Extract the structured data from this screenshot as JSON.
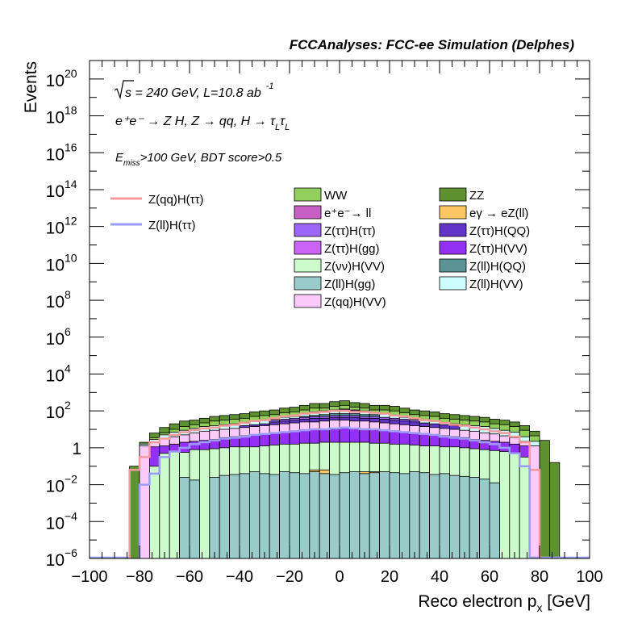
{
  "colors": {
    "ZZ": "#5e9130",
    "WW": "#93cf5c",
    "ee_ll": "#c85fc7",
    "egamma": "#fcc662",
    "tautau_tautau": "#9d66f9",
    "tautau_QQ": "#6234c8",
    "tautau_gg": "#cb63f6",
    "tautau_VV": "#9430f4",
    "nunu_VV": "#ccfccc",
    "ll_QQ": "#5c9496",
    "ll_gg": "#99cbcb",
    "ll_VV": "#cefdfd",
    "qq_VV": "#fdcbfb",
    "sig_qq": "#f7999b",
    "sig_ll": "#9b9cfa"
  },
  "chart_data": {
    "type": "histogram-stack",
    "title": "FCCAnalyses: FCC-ee Simulation (Delphes)",
    "xlabel_main": "Reco electron p",
    "xlabel_sub": "x",
    "xlabel_unit": " [GeV]",
    "ylabel": "Events",
    "xlim": [
      -100,
      100
    ],
    "ylim_exp": [
      -6,
      21
    ],
    "log_y": true,
    "bin_width": 4,
    "x_ticks": [
      -100,
      -80,
      -60,
      -40,
      -20,
      0,
      20,
      40,
      60,
      80,
      100
    ],
    "y_tick_exps": [
      -6,
      -4,
      -2,
      2,
      4,
      6,
      8,
      10,
      12,
      14,
      16,
      18,
      20
    ],
    "y_tick_plain": [
      "1"
    ],
    "annotations": {
      "sqrt": "s",
      "energy": " = 240 GeV, L=10.8 ab",
      "lumi_exp": "-1",
      "process": "e⁺e⁻ → Z H, Z → qq, H → τ",
      "process_sub1": "L",
      "tau2": "τ",
      "process_sub2": "L",
      "cut_E": "E",
      "cut_sub": "miss",
      "cut_rest": ">100 GeV, BDT score>0.5"
    },
    "legend_lines": [
      {
        "key": "sig_qq",
        "label": "Z(qq)H(ττ)"
      },
      {
        "key": "sig_ll",
        "label": "Z(ll)H(ττ)"
      }
    ],
    "legend_boxes": [
      {
        "key": "WW",
        "label": "WW"
      },
      {
        "key": "ZZ",
        "label": "ZZ"
      },
      {
        "key": "ee_ll",
        "label": "e⁺e⁻→ ll"
      },
      {
        "key": "egamma",
        "label": "eγ → eZ(ll)"
      },
      {
        "key": "tautau_tautau",
        "label": "Z(ττ)H(ττ)"
      },
      {
        "key": "tautau_QQ",
        "label": "Z(ττ)H(QQ)"
      },
      {
        "key": "tautau_gg",
        "label": "Z(ττ)H(gg)"
      },
      {
        "key": "tautau_VV",
        "label": "Z(ττ)H(VV)"
      },
      {
        "key": "nunu_VV",
        "label": "Z(νν)H(VV)"
      },
      {
        "key": "ll_QQ",
        "label": "Z(ll)H(QQ)"
      },
      {
        "key": "ll_gg",
        "label": "Z(ll)H(gg)"
      },
      {
        "key": "ll_VV",
        "label": "Z(ll)H(VV)"
      },
      {
        "key": "qq_VV",
        "label": "Z(qq)H(VV)"
      }
    ],
    "stack_order": [
      "ll_gg",
      "egamma",
      "nunu_VV",
      "tautau_gg",
      "tautau_VV",
      "qq_VV",
      "tautau_QQ",
      "tautau_tautau",
      "ll_QQ",
      "ll_VV",
      "ee_ll",
      "WW",
      "ZZ"
    ],
    "bin_low_edges": [
      -84,
      -80,
      -76,
      -72,
      -68,
      -64,
      -60,
      -56,
      -52,
      -48,
      -44,
      -40,
      -36,
      -32,
      -28,
      -24,
      -20,
      -16,
      -12,
      -8,
      -4,
      0,
      4,
      8,
      12,
      16,
      20,
      24,
      28,
      32,
      36,
      40,
      44,
      48,
      52,
      56,
      60,
      64,
      68,
      72,
      76,
      80,
      84
    ],
    "stack_totals_log10": [
      -1.0,
      0.3,
      0.8,
      1.1,
      1.3,
      1.45,
      1.5,
      1.6,
      1.7,
      1.75,
      1.8,
      1.85,
      1.95,
      2.0,
      2.05,
      2.15,
      2.2,
      2.3,
      2.4,
      2.4,
      2.5,
      2.55,
      2.45,
      2.4,
      2.3,
      2.3,
      2.25,
      2.15,
      2.05,
      2.0,
      1.95,
      1.85,
      1.8,
      1.75,
      1.7,
      1.65,
      1.55,
      1.5,
      1.4,
      1.2,
      0.9,
      0.4,
      -0.8
    ],
    "layer_tops_log10": {
      "ll_gg": [
        null,
        null,
        null,
        null,
        null,
        -1.6,
        -1.75,
        null,
        -1.6,
        -1.5,
        -1.45,
        -1.4,
        -1.3,
        -1.4,
        -1.45,
        -1.3,
        -1.35,
        -1.4,
        -1.3,
        -1.4,
        -1.45,
        -1.35,
        -1.3,
        -1.4,
        -1.35,
        -1.3,
        -1.35,
        -1.4,
        -1.3,
        -1.35,
        -1.45,
        -1.4,
        -1.5,
        -1.55,
        -1.6,
        -1.7,
        -1.9,
        null,
        null,
        null,
        null,
        null,
        null
      ],
      "egamma": [
        null,
        null,
        null,
        null,
        null,
        null,
        null,
        null,
        null,
        null,
        null,
        null,
        null,
        null,
        null,
        null,
        -1.5,
        null,
        -1.2,
        -1.2,
        -1.6,
        null,
        -1.5,
        -1.3,
        -1.3,
        null,
        null,
        null,
        null,
        null,
        null,
        null,
        null,
        null,
        null,
        null,
        null,
        null,
        null,
        null,
        null,
        null,
        null
      ],
      "nunu_VV": [
        null,
        null,
        -1.0,
        -0.3,
        -0.2,
        -0.25,
        -0.1,
        -0.1,
        -0.05,
        0.0,
        0.05,
        0.05,
        0.05,
        0.1,
        0.15,
        0.2,
        0.2,
        0.25,
        0.25,
        0.3,
        0.3,
        0.3,
        0.3,
        0.3,
        0.25,
        0.25,
        0.2,
        0.2,
        0.15,
        0.1,
        0.1,
        0.05,
        0.05,
        0.0,
        -0.05,
        -0.1,
        -0.15,
        -0.2,
        -0.3,
        -0.5,
        null,
        null,
        null
      ],
      "tautau_gg": [
        null,
        null,
        null,
        null,
        null,
        null,
        -0.9,
        -0.9,
        -1.0,
        -0.9,
        -0.8,
        -0.8,
        -0.7,
        -0.6,
        -0.6,
        -0.55,
        -0.5,
        -0.45,
        -0.45,
        -0.4,
        -0.4,
        -0.4,
        -0.4,
        -0.4,
        -0.45,
        -0.45,
        -0.5,
        -0.55,
        -0.6,
        -0.6,
        -0.7,
        -0.8,
        -0.8,
        -0.9,
        -1.0,
        -1.2,
        -1.3,
        null,
        null,
        null,
        null,
        null,
        null
      ],
      "tautau_VV": [
        null,
        null,
        0.05,
        0.1,
        0.2,
        0.3,
        0.35,
        0.4,
        0.45,
        0.55,
        0.6,
        0.65,
        0.7,
        0.75,
        0.8,
        0.85,
        0.9,
        0.95,
        1.0,
        1.0,
        1.05,
        1.1,
        1.05,
        1.0,
        1.0,
        0.95,
        0.9,
        0.85,
        0.8,
        0.75,
        0.7,
        0.65,
        0.6,
        0.55,
        0.45,
        0.4,
        0.35,
        0.3,
        0.2,
        0.1,
        null,
        null,
        null
      ],
      "qq_VV": [
        null,
        0.1,
        0.3,
        0.5,
        0.6,
        0.7,
        0.8,
        0.9,
        0.95,
        1.0,
        1.05,
        1.1,
        1.15,
        1.2,
        1.25,
        1.3,
        1.35,
        1.4,
        1.4,
        1.45,
        1.5,
        1.5,
        1.45,
        1.45,
        1.4,
        1.35,
        1.3,
        1.25,
        1.2,
        1.15,
        1.1,
        1.05,
        1.0,
        0.95,
        0.9,
        0.8,
        0.75,
        0.65,
        0.55,
        0.35,
        0.1,
        null,
        null
      ],
      "tautau_QQ": [
        null,
        null,
        null,
        null,
        null,
        null,
        null,
        null,
        null,
        null,
        null,
        1.2,
        1.25,
        1.3,
        1.4,
        1.45,
        1.5,
        1.55,
        1.6,
        1.6,
        1.65,
        1.65,
        1.65,
        1.6,
        1.6,
        1.55,
        1.5,
        1.45,
        1.4,
        1.35,
        1.3,
        1.25,
        1.2,
        null,
        null,
        null,
        null,
        null,
        null,
        null,
        null,
        null,
        null
      ],
      "tautau_tautau": [
        null,
        null,
        null,
        null,
        null,
        null,
        null,
        null,
        null,
        null,
        null,
        null,
        null,
        null,
        1.5,
        1.55,
        1.6,
        1.65,
        1.7,
        1.7,
        1.75,
        1.75,
        1.75,
        1.7,
        1.7,
        1.65,
        1.6,
        1.55,
        1.5,
        null,
        null,
        null,
        null,
        null,
        null,
        null,
        null,
        null,
        null,
        null,
        null,
        null,
        null
      ],
      "ll_QQ": [
        null,
        null,
        null,
        null,
        null,
        null,
        null,
        null,
        null,
        null,
        null,
        null,
        null,
        null,
        null,
        null,
        null,
        1.7,
        1.75,
        1.8,
        1.85,
        1.85,
        1.85,
        1.8,
        1.8,
        null,
        null,
        null,
        null,
        null,
        null,
        null,
        null,
        null,
        null,
        null,
        null,
        null,
        null,
        null,
        null,
        null,
        null
      ],
      "ll_VV": [
        null,
        0.2,
        0.45,
        0.7,
        0.85,
        0.95,
        1.05,
        1.15,
        1.2,
        1.25,
        1.3,
        1.35,
        1.45,
        1.5,
        1.55,
        1.65,
        1.7,
        1.85,
        1.9,
        1.95,
        2.0,
        2.05,
        2.0,
        1.95,
        1.9,
        1.85,
        1.75,
        1.65,
        1.55,
        1.5,
        1.45,
        1.35,
        1.3,
        1.25,
        1.2,
        1.15,
        1.05,
        0.95,
        0.85,
        0.6,
        0.35,
        null,
        null
      ],
      "ee_ll": [
        null,
        null,
        null,
        null,
        null,
        null,
        null,
        null,
        null,
        null,
        null,
        null,
        null,
        null,
        null,
        null,
        null,
        null,
        1.95,
        2.0,
        2.05,
        2.1,
        2.05,
        2.0,
        null,
        null,
        null,
        null,
        null,
        null,
        null,
        null,
        null,
        null,
        null,
        null,
        null,
        null,
        null,
        null,
        null,
        null,
        null
      ],
      "WW": [
        null,
        null,
        0.55,
        0.8,
        1.0,
        1.15,
        1.25,
        1.35,
        1.45,
        1.5,
        1.55,
        1.6,
        1.7,
        1.75,
        1.8,
        1.9,
        1.95,
        2.05,
        2.15,
        2.15,
        2.25,
        2.3,
        2.2,
        2.15,
        2.05,
        2.05,
        2.0,
        1.9,
        1.8,
        1.75,
        1.7,
        1.6,
        1.55,
        1.5,
        1.45,
        1.4,
        1.3,
        1.25,
        1.15,
        0.95,
        0.65,
        null,
        null
      ]
    },
    "sig_qq_log10": [
      -1.2,
      -0.5,
      0.3,
      0.5,
      0.7,
      0.85,
      0.95,
      1.05,
      1.1,
      1.2,
      1.25,
      1.35,
      1.45,
      1.5,
      1.6,
      1.7,
      1.75,
      1.85,
      1.9,
      1.95,
      2.0,
      2.0,
      1.95,
      1.95,
      1.9,
      1.85,
      1.75,
      1.7,
      1.6,
      1.5,
      1.45,
      1.35,
      1.25,
      1.2,
      1.1,
      1.0,
      0.9,
      0.8,
      0.6,
      0.3,
      -1.2,
      null,
      null
    ],
    "sig_ll_log10": [
      null,
      -2.0,
      -1.4,
      -0.5,
      -0.2,
      0.0,
      0.2,
      0.3,
      0.4,
      0.5,
      0.55,
      0.6,
      0.7,
      0.75,
      0.8,
      0.85,
      0.9,
      0.95,
      1.0,
      1.0,
      1.05,
      1.1,
      1.05,
      1.0,
      1.0,
      0.95,
      0.9,
      0.85,
      0.8,
      0.75,
      0.7,
      0.6,
      0.55,
      0.5,
      0.4,
      0.3,
      0.2,
      0.0,
      -0.3,
      -1.0,
      null,
      null,
      null
    ]
  }
}
